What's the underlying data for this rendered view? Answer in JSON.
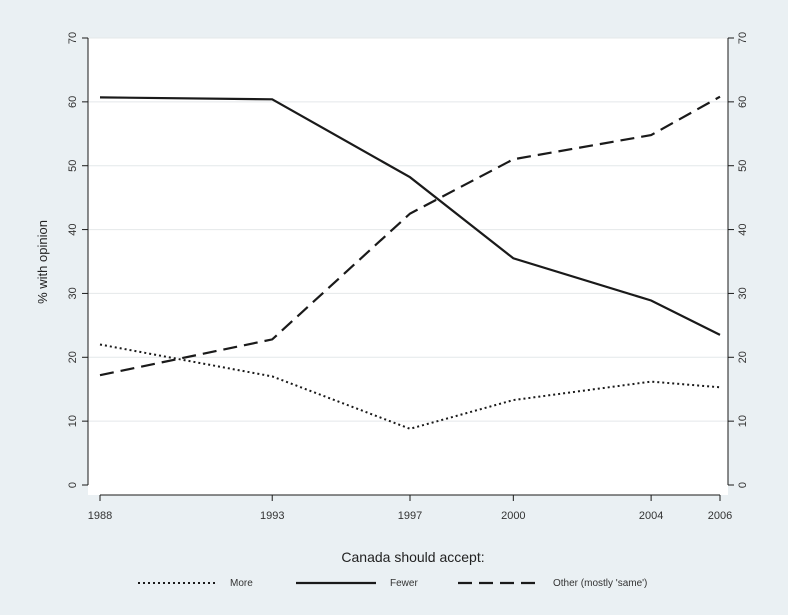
{
  "chart_data": {
    "type": "line",
    "title": "",
    "ylabel": "% with opinion",
    "xlabel": "",
    "ylim": [
      0,
      70
    ],
    "yticks": [
      "0",
      "10",
      "20",
      "30",
      "40",
      "50",
      "60",
      "70"
    ],
    "ytick_values": [
      0,
      10,
      20,
      30,
      40,
      50,
      60,
      70
    ],
    "x": [
      1988,
      1993,
      1997,
      2000,
      2004,
      2006
    ],
    "xtick_labels": [
      "1988",
      "1993",
      "1997",
      "2000",
      "2004",
      "2006"
    ],
    "grid": true,
    "legend_title": "Canada should accept:",
    "legend_position": "bottom",
    "series": [
      {
        "name": "More",
        "style": "dotted",
        "values": [
          22,
          17,
          8.8,
          13.3,
          16.2,
          15.3
        ]
      },
      {
        "name": "Fewer",
        "style": "solid",
        "values": [
          60.7,
          60.4,
          48.2,
          35.5,
          28.9,
          23.5
        ]
      },
      {
        "name": "Other (mostly 'same')",
        "style": "dashed",
        "values": [
          17.2,
          22.8,
          42.5,
          51,
          54.8,
          60.8
        ]
      }
    ],
    "colors": {
      "background": "#eaf0f3",
      "plot_background": "#ffffff",
      "line": "#1a1a1a",
      "grid": "#e4e8ea"
    }
  }
}
